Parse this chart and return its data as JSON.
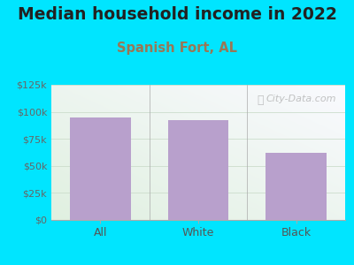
{
  "title": "Median household income in 2022",
  "subtitle": "Spanish Fort, AL",
  "categories": [
    "All",
    "White",
    "Black"
  ],
  "values": [
    95000,
    92000,
    62000
  ],
  "bar_color": "#b8a0cc",
  "background_color": "#00e5ff",
  "ylim": [
    0,
    125000
  ],
  "yticks": [
    0,
    25000,
    50000,
    75000,
    100000,
    125000
  ],
  "ytick_labels": [
    "$0",
    "$25k",
    "$50k",
    "$75k",
    "$100k",
    "$125k"
  ],
  "title_fontsize": 13.5,
  "subtitle_fontsize": 10.5,
  "watermark": "City-Data.com",
  "title_color": "#222222",
  "subtitle_color": "#997755"
}
